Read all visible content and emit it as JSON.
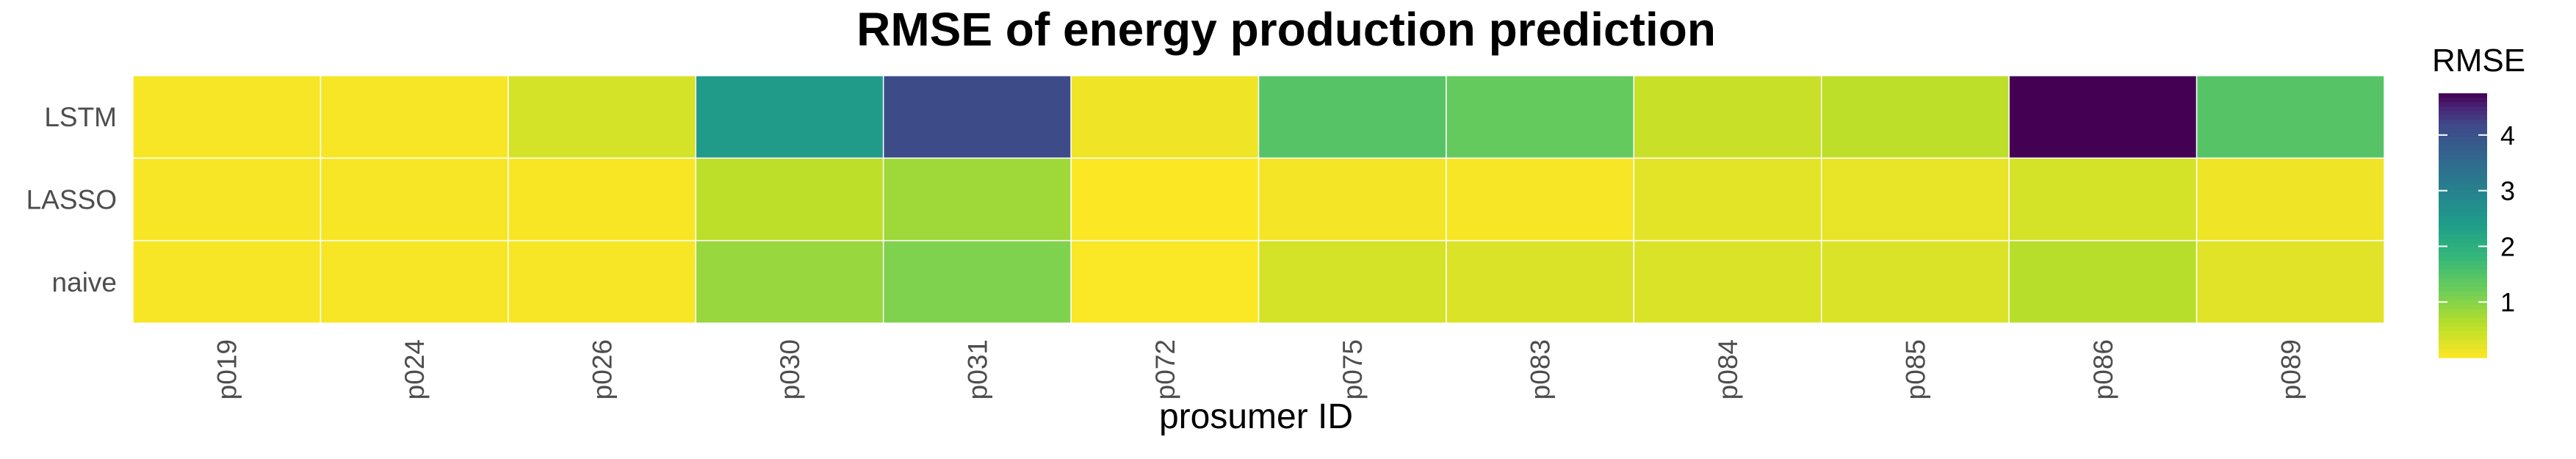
{
  "chart_data": {
    "type": "heatmap",
    "title": "RMSE of energy production prediction",
    "xlabel": "prosumer ID",
    "ylabel": "",
    "x": [
      "p019",
      "p024",
      "p026",
      "p030",
      "p031",
      "p072",
      "p075",
      "p083",
      "p084",
      "p085",
      "p086",
      "p089"
    ],
    "y": [
      "LSTM",
      "LASSO",
      "naive"
    ],
    "values": [
      [
        0.05,
        0.05,
        0.35,
        2.45,
        4.15,
        0.12,
        1.45,
        1.3,
        0.45,
        0.55,
        4.75,
        1.45
      ],
      [
        0.05,
        0.05,
        0.04,
        0.55,
        0.8,
        0.01,
        0.08,
        0.05,
        0.22,
        0.18,
        0.35,
        0.12
      ],
      [
        0.05,
        0.05,
        0.05,
        0.85,
        1.05,
        0.03,
        0.35,
        0.3,
        0.3,
        0.3,
        0.6,
        0.25
      ]
    ],
    "colorscale": "viridis (reversed: low = yellow, high = dark purple)",
    "legend": {
      "title": "RMSE",
      "ticks": [
        1,
        2,
        3,
        4
      ],
      "range": [
        0,
        4.75
      ],
      "placement": "right"
    },
    "grid": false
  }
}
